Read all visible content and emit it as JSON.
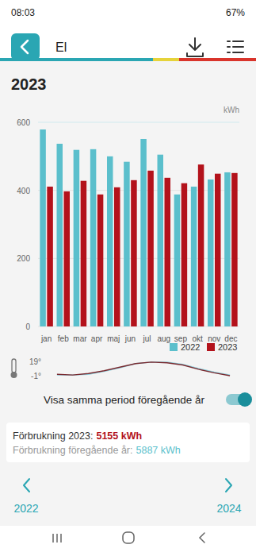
{
  "page": {
    "status": {
      "time": "08:03",
      "battery": "67%"
    },
    "header": {
      "title": "El"
    },
    "year": "2023",
    "toggle": "Visa samma period föregående år",
    "summary": [
      {
        "label": "Förbrukning 2023:",
        "value": "5155 kWh"
      },
      {
        "label": "Förbrukning föregående år:",
        "value": "5887 kWh"
      }
    ],
    "nav": {
      "previous": "2022",
      "next": "2024"
    }
  },
  "chart_data": [
    {
      "type": "bar",
      "y_label": "kWh",
      "categories": [
        "jan",
        "feb",
        "mar",
        "apr",
        "maj",
        "jun",
        "jul",
        "aug",
        "sep",
        "okt",
        "nov",
        "dec"
      ],
      "series": [
        {
          "name": "2022",
          "color": "#5bbfcc",
          "values": [
            579,
            537,
            519,
            521,
            500,
            484,
            551,
            505,
            388,
            411,
            432,
            453
          ]
        },
        {
          "name": "2023",
          "color": "#b3121b",
          "values": [
            411,
            397,
            428,
            388,
            409,
            430,
            458,
            437,
            421,
            476,
            449,
            451
          ]
        }
      ],
      "ylim": [
        0,
        600
      ],
      "yticks": [
        0,
        200,
        400,
        600
      ],
      "grid": true,
      "legend": "bottom-right"
    },
    {
      "type": "line",
      "categories": [
        null,
        null,
        null,
        null,
        null,
        null,
        null,
        null,
        null,
        null,
        null,
        null
      ],
      "series": [
        {
          "color": "#8fd0dc",
          "values": [
            0,
            0,
            1,
            5,
            10,
            16,
            18,
            18,
            15,
            9,
            4,
            0
          ]
        },
        {
          "color": "#7a2a30",
          "values": [
            1,
            0,
            2,
            6,
            11,
            16,
            18,
            17,
            14,
            8,
            3,
            -1
          ]
        }
      ],
      "ylim": [
        -1,
        19
      ],
      "yticks": [
        {
          "value": 19,
          "label": "19°"
        },
        {
          "value": -1,
          "label": "-1°"
        }
      ],
      "tick_labels": "y"
    }
  ]
}
